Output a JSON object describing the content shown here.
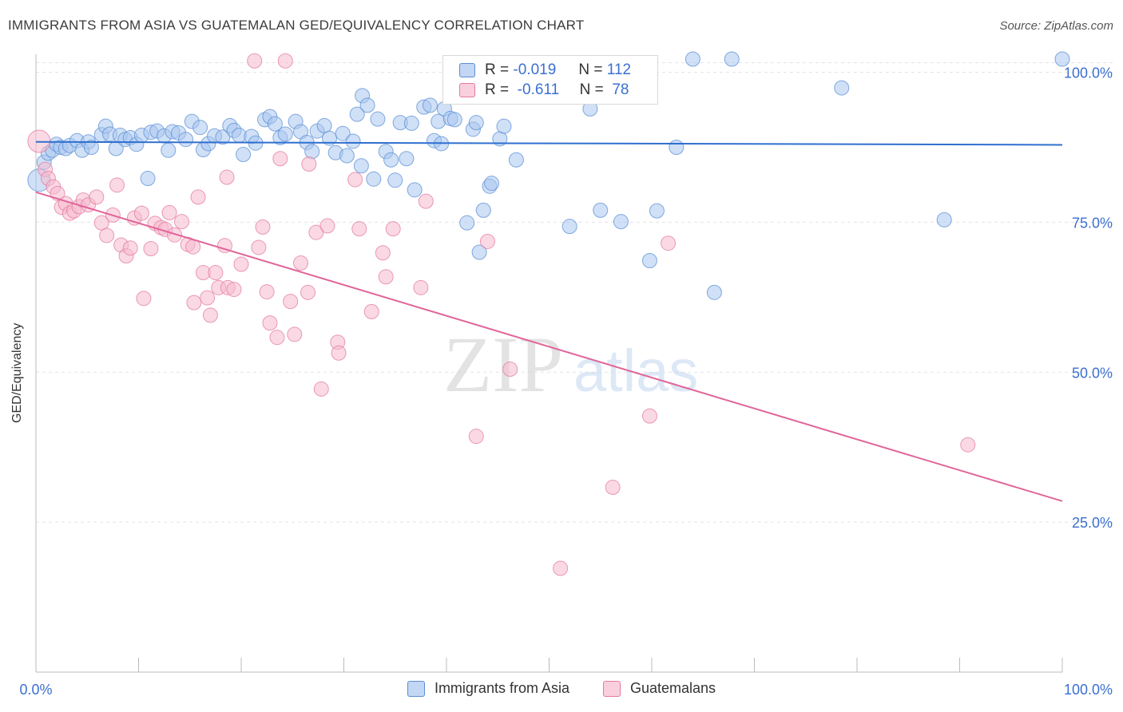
{
  "title": "IMMIGRANTS FROM ASIA VS GUATEMALAN GED/EQUIVALENCY CORRELATION CHART",
  "source": "Source: ZipAtlas.com",
  "colors": {
    "blue": "#5b8fd6",
    "blue_fill": "#aac6ee",
    "pink": "#e47aa0",
    "pink_fill": "#f6b9cd",
    "axis_text": "#3c6fd0",
    "grid": "#e3e3e3"
  },
  "legend": {
    "r_label": "R =",
    "n_label": "N =",
    "blue": {
      "r": "-0.019",
      "n": "112"
    },
    "pink": {
      "r": "-0.611",
      "n": "78"
    }
  },
  "chart_data": {
    "type": "scatter",
    "title": "IMMIGRANTS FROM ASIA VS GUATEMALAN GED/EQUIVALENCY CORRELATION CHART",
    "xlabel": "",
    "ylabel": "GED/Equivalency",
    "xlim": [
      0,
      100
    ],
    "ylim": [
      0,
      103
    ],
    "x_tick_labels": [
      "0.0%",
      "100.0%"
    ],
    "y_ticks": [
      25,
      50,
      75,
      100
    ],
    "y_tick_labels": [
      "25.0%",
      "50.0%",
      "75.0%",
      "100.0%"
    ],
    "grid": true,
    "legend_position": "top-center",
    "watermark": "ZIPatlas",
    "series": [
      {
        "name": "Immigrants from Asia",
        "r": -0.019,
        "n": 112,
        "trend": [
          [
            0,
            88.4
          ],
          [
            100,
            87.9
          ]
        ],
        "points": [
          [
            0.3,
            82
          ],
          [
            0.8,
            85
          ],
          [
            1.2,
            86.5
          ],
          [
            1.6,
            87
          ],
          [
            2.0,
            88
          ],
          [
            2.4,
            87.5
          ],
          [
            2.9,
            87.3
          ],
          [
            3.3,
            87.8
          ],
          [
            4.0,
            88.6
          ],
          [
            4.5,
            87
          ],
          [
            5.1,
            88.4
          ],
          [
            5.4,
            87.5
          ],
          [
            6.4,
            89.6
          ],
          [
            6.8,
            91
          ],
          [
            7.2,
            89.7
          ],
          [
            7.8,
            87.3
          ],
          [
            8.2,
            89.5
          ],
          [
            8.7,
            88.8
          ],
          [
            9.2,
            89.1
          ],
          [
            9.8,
            88
          ],
          [
            10.3,
            89.5
          ],
          [
            10.9,
            82.3
          ],
          [
            11.2,
            90
          ],
          [
            11.8,
            90.2
          ],
          [
            12.5,
            89.4
          ],
          [
            12.9,
            87
          ],
          [
            13.3,
            90.1
          ],
          [
            13.9,
            89.9
          ],
          [
            14.6,
            88.8
          ],
          [
            15.2,
            91.8
          ],
          [
            16.0,
            90.8
          ],
          [
            16.3,
            87.1
          ],
          [
            16.8,
            88.1
          ],
          [
            17.4,
            89.4
          ],
          [
            18.2,
            89.2
          ],
          [
            18.9,
            91.1
          ],
          [
            19.3,
            90.3
          ],
          [
            19.8,
            89.5
          ],
          [
            20.2,
            86.3
          ],
          [
            21.0,
            89.3
          ],
          [
            21.4,
            88.2
          ],
          [
            22.3,
            92.1
          ],
          [
            22.8,
            92.6
          ],
          [
            23.3,
            91.4
          ],
          [
            23.8,
            89.1
          ],
          [
            24.3,
            89.7
          ],
          [
            25.3,
            91.8
          ],
          [
            25.8,
            90.1
          ],
          [
            26.4,
            88.3
          ],
          [
            26.9,
            86.8
          ],
          [
            27.4,
            90.2
          ],
          [
            28.1,
            91.1
          ],
          [
            28.6,
            89
          ],
          [
            29.2,
            86.6
          ],
          [
            29.9,
            89.8
          ],
          [
            30.3,
            86.1
          ],
          [
            30.9,
            88.5
          ],
          [
            31.3,
            93
          ],
          [
            31.7,
            84.4
          ],
          [
            31.8,
            96.1
          ],
          [
            32.3,
            94.5
          ],
          [
            32.9,
            82.2
          ],
          [
            33.3,
            92.2
          ],
          [
            34.1,
            86.8
          ],
          [
            34.6,
            85.4
          ],
          [
            35.0,
            82
          ],
          [
            35.5,
            91.6
          ],
          [
            36.1,
            85.6
          ],
          [
            36.6,
            91.5
          ],
          [
            36.9,
            80.4
          ],
          [
            37.8,
            94.2
          ],
          [
            38.4,
            94.5
          ],
          [
            38.8,
            88.6
          ],
          [
            39.2,
            91.8
          ],
          [
            39.5,
            88.1
          ],
          [
            39.8,
            93.9
          ],
          [
            40.4,
            92.3
          ],
          [
            40.8,
            92.1
          ],
          [
            42.0,
            74.9
          ],
          [
            42.6,
            90.5
          ],
          [
            42.9,
            91.6
          ],
          [
            43.2,
            70
          ],
          [
            43.6,
            77
          ],
          [
            44.2,
            81
          ],
          [
            44.4,
            81.5
          ],
          [
            44.7,
            101
          ],
          [
            45.2,
            88.9
          ],
          [
            45.6,
            91
          ],
          [
            46.3,
            96.5
          ],
          [
            46.8,
            85.4
          ],
          [
            48.3,
            99.1
          ],
          [
            52.0,
            74.3
          ],
          [
            54.0,
            93.9
          ],
          [
            55.0,
            77
          ],
          [
            57.0,
            75.1
          ],
          [
            59.8,
            68.6
          ],
          [
            60.5,
            76.9
          ],
          [
            62.4,
            87.5
          ],
          [
            64.0,
            102.2
          ],
          [
            66.1,
            63.3
          ],
          [
            67.8,
            102.2
          ],
          [
            78.5,
            97.4
          ],
          [
            88.5,
            75.4
          ],
          [
            100,
            102.2
          ]
        ]
      },
      {
        "name": "Guatemalans",
        "r": -0.611,
        "n": 78,
        "trend": [
          [
            0,
            80.0
          ],
          [
            100,
            28.5
          ]
        ],
        "points": [
          [
            0.3,
            88.5
          ],
          [
            0.9,
            83.8
          ],
          [
            1.2,
            82.3
          ],
          [
            1.7,
            80.9
          ],
          [
            2.1,
            79.8
          ],
          [
            2.5,
            77.5
          ],
          [
            2.9,
            78.1
          ],
          [
            3.3,
            76.5
          ],
          [
            3.7,
            76.9
          ],
          [
            4.2,
            77.6
          ],
          [
            4.6,
            78.7
          ],
          [
            5.1,
            77.9
          ],
          [
            5.9,
            79.2
          ],
          [
            6.4,
            74.9
          ],
          [
            6.9,
            72.8
          ],
          [
            7.5,
            76.2
          ],
          [
            7.9,
            81.2
          ],
          [
            8.3,
            71.2
          ],
          [
            8.8,
            69.4
          ],
          [
            9.2,
            70.7
          ],
          [
            9.6,
            75.7
          ],
          [
            10.3,
            76.5
          ],
          [
            10.5,
            62.3
          ],
          [
            11.2,
            70.6
          ],
          [
            11.6,
            74.8
          ],
          [
            12.2,
            74.1
          ],
          [
            12.6,
            73.8
          ],
          [
            13.0,
            76.6
          ],
          [
            13.5,
            72.9
          ],
          [
            14.2,
            75.1
          ],
          [
            14.8,
            71.3
          ],
          [
            15.3,
            70.9
          ],
          [
            15.4,
            61.6
          ],
          [
            15.8,
            79.2
          ],
          [
            16.3,
            66.6
          ],
          [
            16.7,
            62.4
          ],
          [
            17.0,
            59.5
          ],
          [
            17.5,
            66.6
          ],
          [
            17.8,
            64.1
          ],
          [
            18.4,
            71.1
          ],
          [
            18.6,
            82.5
          ],
          [
            18.7,
            64.1
          ],
          [
            19.3,
            63.8
          ],
          [
            20.0,
            68
          ],
          [
            21.3,
            101.9
          ],
          [
            21.7,
            70.8
          ],
          [
            22.1,
            74.2
          ],
          [
            22.5,
            63.4
          ],
          [
            22.8,
            58.2
          ],
          [
            23.5,
            55.8
          ],
          [
            23.8,
            85.6
          ],
          [
            24.8,
            61.8
          ],
          [
            25.2,
            56.3
          ],
          [
            25.8,
            68.2
          ],
          [
            26.5,
            63.3
          ],
          [
            26.6,
            84.7
          ],
          [
            27.3,
            73.3
          ],
          [
            27.8,
            47.2
          ],
          [
            28.4,
            74.4
          ],
          [
            29.4,
            55
          ],
          [
            29.5,
            53.2
          ],
          [
            31.1,
            82.1
          ],
          [
            31.5,
            73.9
          ],
          [
            32.7,
            60.1
          ],
          [
            33.8,
            69.9
          ],
          [
            34.1,
            65.9
          ],
          [
            34.8,
            73.9
          ],
          [
            37.5,
            64.1
          ],
          [
            38.0,
            78.5
          ],
          [
            42.9,
            39.3
          ],
          [
            44.0,
            71.8
          ],
          [
            46.2,
            50.5
          ],
          [
            51.1,
            17.3
          ],
          [
            56.2,
            30.8
          ],
          [
            59.8,
            42.7
          ],
          [
            61.6,
            71.5
          ],
          [
            90.8,
            37.9
          ],
          [
            24.3,
            101.9
          ]
        ]
      }
    ]
  },
  "bottom_legend": [
    "Immigrants from Asia",
    "Guatemalans"
  ]
}
